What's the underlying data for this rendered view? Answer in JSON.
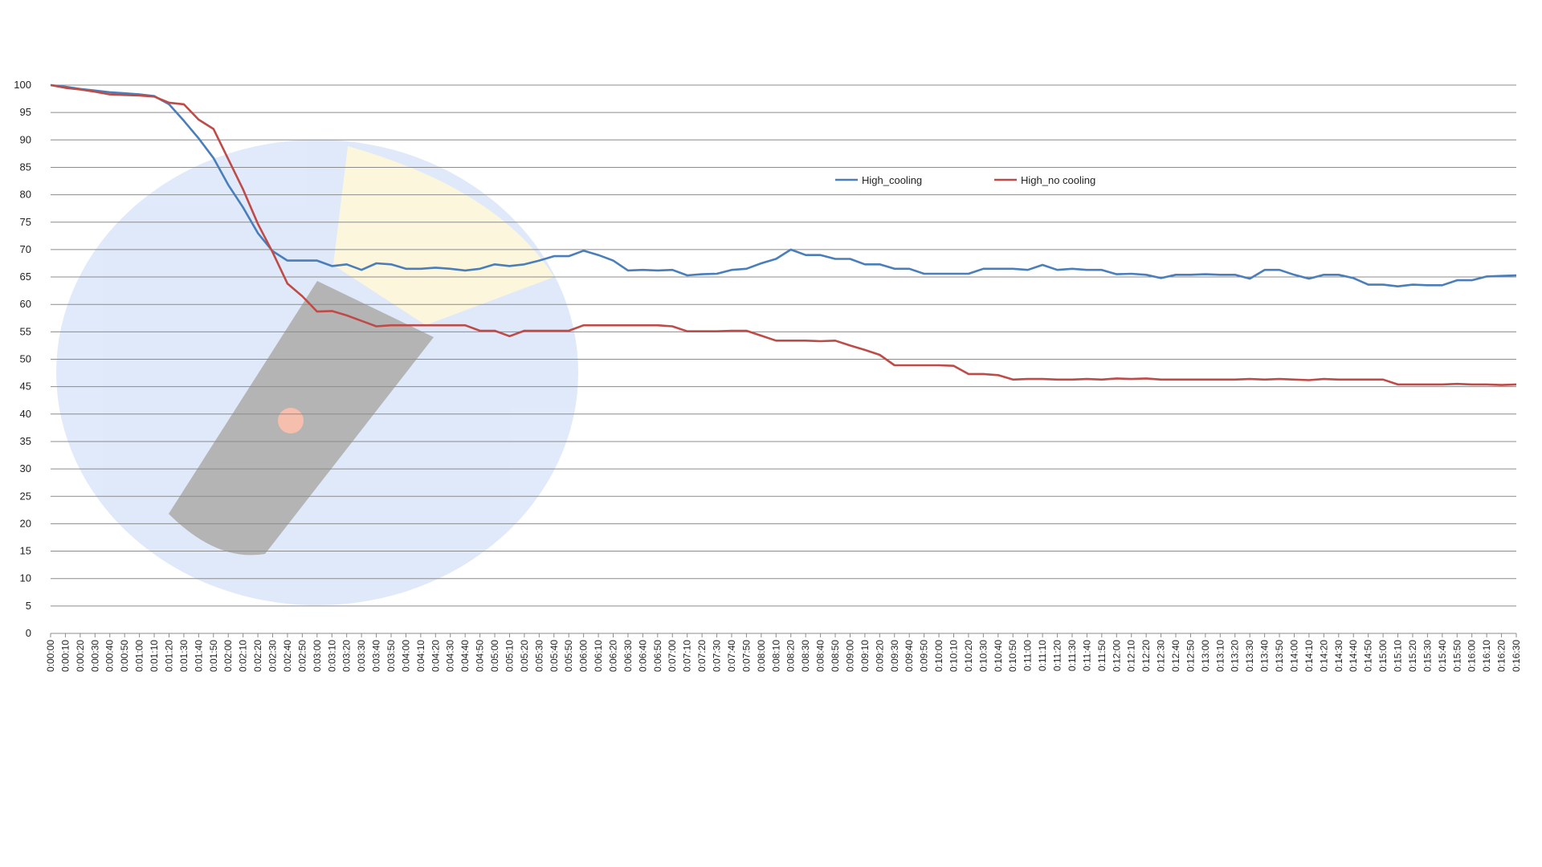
{
  "chart_data": {
    "type": "line",
    "categories": [
      "0:00:00",
      "0:00:10",
      "0:00:20",
      "0:00:30",
      "0:00:40",
      "0:00:50",
      "0:01:00",
      "0:01:10",
      "0:01:20",
      "0:01:30",
      "0:01:40",
      "0:01:50",
      "0:02:00",
      "0:02:10",
      "0:02:20",
      "0:02:30",
      "0:02:40",
      "0:02:50",
      "0:03:00",
      "0:03:10",
      "0:03:20",
      "0:03:30",
      "0:03:40",
      "0:03:50",
      "0:04:00",
      "0:04:10",
      "0:04:20",
      "0:04:30",
      "0:04:40",
      "0:04:50",
      "0:05:00",
      "0:05:10",
      "0:05:20",
      "0:05:30",
      "0:05:40",
      "0:05:50",
      "0:06:00",
      "0:06:10",
      "0:06:20",
      "0:06:30",
      "0:06:40",
      "0:06:50",
      "0:07:00",
      "0:07:10",
      "0:07:20",
      "0:07:30",
      "0:07:40",
      "0:07:50",
      "0:08:00",
      "0:08:10",
      "0:08:20",
      "0:08:30",
      "0:08:40",
      "0:08:50",
      "0:09:00",
      "0:09:10",
      "0:09:20",
      "0:09:30",
      "0:09:40",
      "0:09:50",
      "0:10:00",
      "0:10:10",
      "0:10:20",
      "0:10:30",
      "0:10:40",
      "0:10:50",
      "0:11:00",
      "0:11:10",
      "0:11:20",
      "0:11:30",
      "0:11:40",
      "0:11:50",
      "0:12:00",
      "0:12:10",
      "0:12:20",
      "0:12:30",
      "0:12:40",
      "0:12:50",
      "0:13:00",
      "0:13:10",
      "0:13:20",
      "0:13:30",
      "0:13:40",
      "0:13:50",
      "0:14:00",
      "0:14:10",
      "0:14:20",
      "0:14:30",
      "0:14:40",
      "0:14:50",
      "0:15:00",
      "0:15:10",
      "0:15:20",
      "0:15:30",
      "0:15:40",
      "0:15:50",
      "0:16:00",
      "0:16:10",
      "0:16:20",
      "0:16:30"
    ],
    "series": [
      {
        "name": "High_cooling",
        "color": "#4a7ebb",
        "values": [
          100,
          99.7,
          99.3,
          99,
          98.7,
          98.5,
          98.3,
          98,
          96.5,
          93.5,
          90.3,
          86.7,
          81.8,
          77.7,
          73,
          69.7,
          68,
          68,
          68,
          67,
          67.3,
          66.3,
          67.5,
          67.3,
          66.5,
          66.5,
          66.7,
          66.5,
          66.2,
          66.5,
          67.3,
          67,
          67.3,
          68,
          68.8,
          68.8,
          69.8,
          69,
          68,
          66.2,
          66.3,
          66.2,
          66.3,
          65.3,
          65.5,
          65.6,
          66.3,
          66.5,
          67.5,
          68.3,
          70,
          69,
          69,
          68.3,
          68.3,
          67.3,
          67.3,
          66.5,
          66.5,
          65.6,
          65.6,
          65.6,
          65.6,
          66.5,
          66.5,
          66.5,
          66.3,
          67.2,
          66.3,
          66.5,
          66.3,
          66.3,
          65.5,
          65.6,
          65.4,
          64.8,
          65.4,
          65.4,
          65.5,
          65.4,
          65.4,
          64.7,
          66.3,
          66.3,
          65.4,
          64.7,
          65.4,
          65.4,
          64.8,
          63.6,
          63.6,
          63.3,
          63.6,
          63.5,
          63.5,
          64.4,
          64.4,
          65.1,
          65.2,
          65.3
        ]
      },
      {
        "name": "High_no cooling",
        "color": "#be4b48",
        "values": [
          100,
          99.5,
          99.2,
          98.8,
          98.3,
          98.2,
          98.1,
          97.9,
          96.8,
          96.5,
          93.7,
          92,
          86.5,
          81,
          74.7,
          69.5,
          63.8,
          61.5,
          58.7,
          58.8,
          58,
          57,
          56,
          56.2,
          56.2,
          56.2,
          56.2,
          56.2,
          56.2,
          55.2,
          55.2,
          54.2,
          55.2,
          55.2,
          55.2,
          55.2,
          56.2,
          56.2,
          56.2,
          56.2,
          56.2,
          56.2,
          56,
          55.1,
          55.1,
          55.1,
          55.2,
          55.2,
          54.3,
          53.4,
          53.4,
          53.4,
          53.3,
          53.4,
          52.5,
          51.7,
          50.8,
          48.9,
          48.9,
          48.9,
          48.9,
          48.8,
          47.3,
          47.3,
          47.1,
          46.3,
          46.4,
          46.4,
          46.3,
          46.3,
          46.4,
          46.3,
          46.5,
          46.4,
          46.5,
          46.3,
          46.3,
          46.3,
          46.3,
          46.3,
          46.3,
          46.4,
          46.3,
          46.4,
          46.3,
          46.2,
          46.4,
          46.3,
          46.3,
          46.3,
          46.3,
          45.4,
          45.4,
          45.4,
          45.4,
          45.5,
          45.4,
          45.4,
          45.3,
          45.4
        ]
      }
    ],
    "ylim": [
      0,
      100
    ],
    "yticks": [
      0,
      5,
      10,
      15,
      20,
      25,
      30,
      35,
      40,
      45,
      50,
      55,
      60,
      65,
      70,
      75,
      80,
      85,
      90,
      95,
      100
    ],
    "grid": true,
    "legend": "top-right"
  }
}
